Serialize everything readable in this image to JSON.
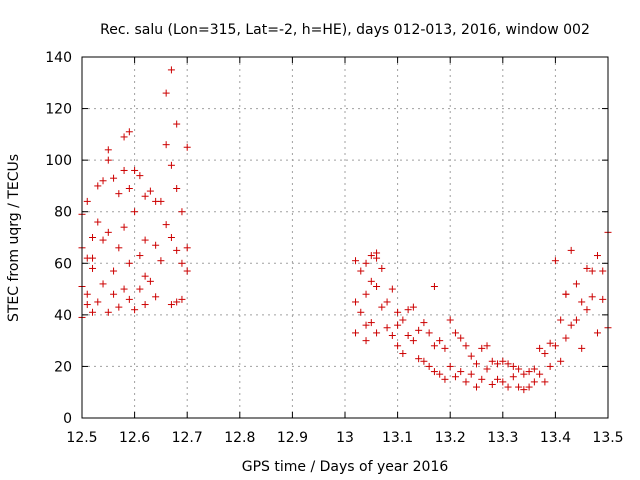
{
  "chart_data": {
    "type": "scatter",
    "title": "Rec. salu (Lon=315, Lat=-2, h=HE), days 012-013, 2016, window 002",
    "xlabel": "GPS time / Days of year 2016",
    "ylabel": "STEC from uqrg / TECUs",
    "xlim": [
      12.5,
      13.5
    ],
    "ylim": [
      0,
      140
    ],
    "xticks": [
      12.5,
      12.6,
      12.7,
      12.8,
      12.9,
      13,
      13.1,
      13.2,
      13.3,
      13.4,
      13.5
    ],
    "xtick_labels": [
      "12.5",
      "12.6",
      "12.7",
      "12.8",
      "12.9",
      "13",
      "13.1",
      "13.2",
      "13.3",
      "13.4",
      "13.5"
    ],
    "yticks": [
      0,
      20,
      40,
      60,
      80,
      100,
      120,
      140
    ],
    "ytick_labels": [
      "0",
      "20",
      "40",
      "60",
      "80",
      "100",
      "120",
      "140"
    ],
    "grid": true,
    "marker": "+",
    "marker_color": "#cc0000",
    "series": [
      {
        "x": [
          12.5,
          12.5,
          12.5,
          12.5,
          12.51,
          12.51,
          12.51,
          12.51,
          12.52,
          12.52,
          12.52,
          12.53,
          12.53,
          12.53,
          12.54,
          12.54,
          12.54,
          12.55,
          12.55,
          12.55,
          12.56,
          12.56,
          12.56,
          12.57,
          12.57,
          12.57,
          12.58,
          12.58,
          12.58,
          12.59,
          12.59,
          12.59,
          12.6,
          12.6,
          12.6,
          12.61,
          12.61,
          12.61,
          12.62,
          12.62,
          12.62,
          12.63,
          12.63,
          12.64,
          12.64,
          12.64,
          12.65,
          12.65,
          12.66,
          12.66,
          12.67,
          12.67,
          12.67,
          12.68,
          12.68,
          12.68,
          12.69,
          12.69,
          12.69,
          12.7,
          12.7,
          12.7,
          12.58,
          12.59,
          12.66,
          12.67,
          12.68,
          12.55,
          12.52,
          12.62
        ],
        "y": [
          39,
          51,
          66,
          79,
          44,
          62,
          84,
          48,
          70,
          58,
          41,
          90,
          76,
          45,
          92,
          69,
          52,
          100,
          72,
          41,
          93,
          57,
          48,
          87,
          66,
          43,
          96,
          74,
          50,
          89,
          60,
          46,
          96,
          80,
          42,
          94,
          63,
          50,
          86,
          69,
          44,
          88,
          53,
          84,
          67,
          47,
          84,
          61,
          106,
          75,
          98,
          70,
          44,
          89,
          65,
          45,
          80,
          60,
          46,
          105,
          66,
          57,
          109,
          111,
          126,
          135,
          114,
          104,
          62,
          55
        ]
      },
      {
        "x": [
          13.02,
          13.02,
          13.02,
          13.03,
          13.03,
          13.04,
          13.04,
          13.04,
          13.05,
          13.05,
          13.06,
          13.06,
          13.06,
          13.07,
          13.07,
          13.08,
          13.08,
          13.09,
          13.09,
          13.1,
          13.1,
          13.1,
          13.11,
          13.11,
          13.12,
          13.12,
          13.13,
          13.13,
          13.14,
          13.14,
          13.15,
          13.15,
          13.16,
          13.16,
          13.17,
          13.17,
          13.18,
          13.18,
          13.19,
          13.19,
          13.2,
          13.2,
          13.21,
          13.21,
          13.22,
          13.22,
          13.23,
          13.23,
          13.24,
          13.24,
          13.25,
          13.25,
          13.26,
          13.26,
          13.27,
          13.27,
          13.28,
          13.28,
          13.29,
          13.29,
          13.3,
          13.3,
          13.31,
          13.31,
          13.32,
          13.32,
          13.33,
          13.33,
          13.34,
          13.34,
          13.35,
          13.35,
          13.36,
          13.36,
          13.37,
          13.37,
          13.38,
          13.38,
          13.39,
          13.39,
          13.4,
          13.4,
          13.41,
          13.41,
          13.42,
          13.42,
          13.43,
          13.43,
          13.44,
          13.44,
          13.45,
          13.45,
          13.46,
          13.46,
          13.47,
          13.47,
          13.48,
          13.48,
          13.49,
          13.49,
          13.5,
          13.5,
          13.17,
          13.04,
          13.05,
          13.06,
          13.42
        ],
        "y": [
          61,
          45,
          33,
          57,
          41,
          60,
          48,
          36,
          63,
          37,
          62,
          51,
          33,
          58,
          43,
          45,
          35,
          50,
          32,
          41,
          36,
          28,
          38,
          25,
          42,
          32,
          43,
          30,
          34,
          23,
          37,
          22,
          33,
          20,
          28,
          18,
          30,
          17,
          27,
          15,
          38,
          20,
          33,
          16,
          31,
          18,
          28,
          14,
          24,
          17,
          21,
          12,
          27,
          15,
          28,
          19,
          22,
          13,
          21,
          15,
          22,
          14,
          21,
          12,
          20,
          16,
          19,
          12,
          17,
          11,
          18,
          12,
          19,
          14,
          27,
          17,
          25,
          14,
          29,
          20,
          61,
          28,
          38,
          22,
          48,
          31,
          65,
          36,
          52,
          38,
          45,
          27,
          58,
          42,
          57,
          47,
          63,
          33,
          57,
          46,
          72,
          35,
          51,
          30,
          53,
          64,
          48
        ]
      }
    ]
  }
}
